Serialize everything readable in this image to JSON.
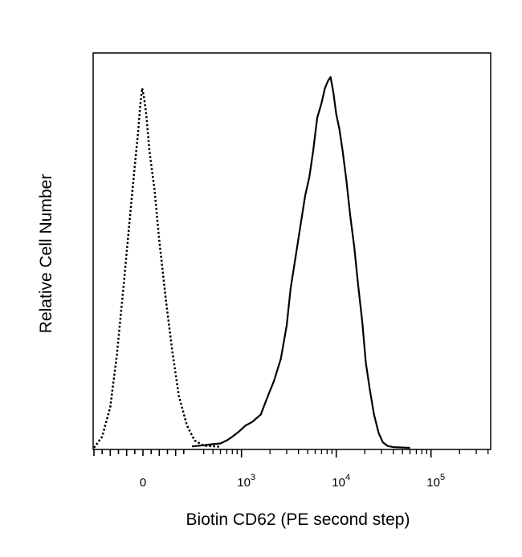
{
  "chart_data": {
    "type": "line",
    "xlabel": "Biotin CD62 (PE second step)",
    "ylabel": "Relative Cell Number",
    "x_scale": "logicle",
    "x_ticks": [
      {
        "label": "0",
        "value": 0
      },
      {
        "label_base": "10",
        "label_exp": "3",
        "value": 1000
      },
      {
        "label_base": "10",
        "label_exp": "4",
        "value": 10000
      },
      {
        "label_base": "10",
        "label_exp": "5",
        "value": 100000
      }
    ],
    "ylim": [
      0,
      100
    ],
    "grid": false,
    "legend": "none",
    "series": [
      {
        "style": "dotted",
        "color": "#000000",
        "points": [
          [
            -300,
            0
          ],
          [
            -250,
            3
          ],
          [
            -200,
            11
          ],
          [
            -160,
            25
          ],
          [
            -120,
            43
          ],
          [
            -80,
            62
          ],
          [
            -50,
            76
          ],
          [
            -30,
            85
          ],
          [
            -15,
            93
          ],
          [
            -5,
            97
          ],
          [
            5,
            95
          ],
          [
            20,
            90
          ],
          [
            40,
            80
          ],
          [
            70,
            70
          ],
          [
            100,
            56
          ],
          [
            140,
            40
          ],
          [
            180,
            26
          ],
          [
            220,
            14
          ],
          [
            270,
            6
          ],
          [
            320,
            2
          ],
          [
            400,
            0.6
          ],
          [
            600,
            0.3
          ]
        ]
      },
      {
        "style": "solid",
        "color": "#000000",
        "points": [
          [
            300,
            0.4
          ],
          [
            400,
            0.7
          ],
          [
            500,
            1.0
          ],
          [
            600,
            1.2
          ],
          [
            700,
            2.0
          ],
          [
            800,
            3.0
          ],
          [
            950,
            4.5
          ],
          [
            1100,
            6.0
          ],
          [
            1300,
            7.0
          ],
          [
            1600,
            9.0
          ],
          [
            1900,
            14.0
          ],
          [
            2200,
            18.0
          ],
          [
            2600,
            24.0
          ],
          [
            3000,
            33.0
          ],
          [
            3300,
            43.0
          ],
          [
            3700,
            51.0
          ],
          [
            4200,
            60.0
          ],
          [
            4700,
            68.0
          ],
          [
            5200,
            73.0
          ],
          [
            5700,
            80.0
          ],
          [
            6300,
            89.0
          ],
          [
            7000,
            93.0
          ],
          [
            7600,
            97.0
          ],
          [
            8200,
            99.0
          ],
          [
            8700,
            100.0
          ],
          [
            9300,
            96.0
          ],
          [
            10000,
            90.0
          ],
          [
            10800,
            86.0
          ],
          [
            11700,
            80.0
          ],
          [
            12800,
            72.0
          ],
          [
            14000,
            63.0
          ],
          [
            15500,
            54.0
          ],
          [
            17000,
            44.0
          ],
          [
            18800,
            34.0
          ],
          [
            20500,
            23.0
          ],
          [
            22500,
            16.0
          ],
          [
            25000,
            9.0
          ],
          [
            28000,
            4.0
          ],
          [
            31000,
            1.5
          ],
          [
            35000,
            0.5
          ],
          [
            40000,
            0.2
          ],
          [
            60000,
            0.0
          ]
        ]
      }
    ]
  }
}
